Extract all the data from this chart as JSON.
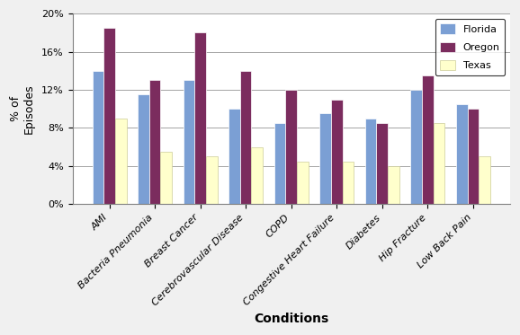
{
  "categories": [
    "AMI",
    "Bacteria Pneumonia",
    "Breast Cancer",
    "Cerebrovascular Disease",
    "COPD",
    "Congestive Heart Failure",
    "Diabetes",
    "Hip Fracture",
    "Low Back Pain"
  ],
  "florida": [
    0.14,
    0.115,
    0.13,
    0.1,
    0.085,
    0.095,
    0.09,
    0.12,
    0.105
  ],
  "oregon": [
    0.185,
    0.13,
    0.18,
    0.14,
    0.12,
    0.11,
    0.085,
    0.135,
    0.1
  ],
  "texas": [
    0.09,
    0.055,
    0.05,
    0.06,
    0.045,
    0.045,
    0.04,
    0.085,
    0.05
  ],
  "florida_color": "#7b9fd4",
  "oregon_color": "#7b2c5e",
  "texas_color": "#ffffcc",
  "ylabel": "% of\nEpisodes",
  "xlabel": "Conditions",
  "legend_labels": [
    "Florida",
    "Oregon",
    "Texas"
  ],
  "ylim": [
    0,
    0.2
  ],
  "yticks": [
    0,
    0.04,
    0.08,
    0.12,
    0.16,
    0.2
  ],
  "ytick_labels": [
    "0%",
    "4%",
    "8%",
    "12%",
    "16%",
    "20%"
  ],
  "background_color": "#f0f0f0",
  "plot_bg_color": "#ffffff"
}
